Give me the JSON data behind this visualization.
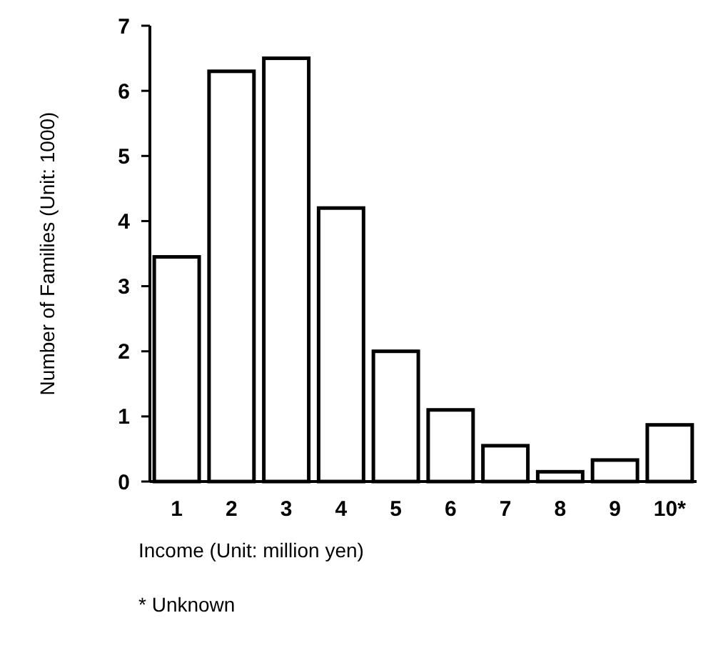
{
  "chart_data": {
    "type": "bar",
    "xlabel": "Income (Unit: million yen)",
    "ylabel": "Number of Families (Unit: 1000)",
    "categories": [
      "1",
      "2",
      "3",
      "4",
      "5",
      "6",
      "7",
      "8",
      "9",
      "10*"
    ],
    "values": [
      3.45,
      6.3,
      6.5,
      4.2,
      2.0,
      1.1,
      0.55,
      0.15,
      0.33,
      0.87
    ],
    "color": "#ffffff",
    "ylim": [
      0,
      7
    ],
    "yticks": [
      0,
      1,
      2,
      3,
      4,
      5,
      6,
      7
    ],
    "annotations": [
      "* Unknown"
    ]
  }
}
